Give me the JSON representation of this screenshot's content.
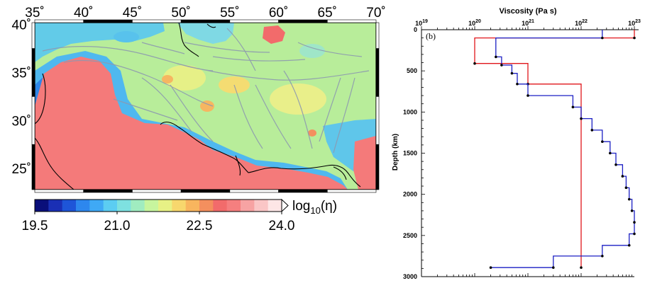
{
  "map": {
    "lon_ticks": [
      "35˚",
      "40˚",
      "45˚",
      "50˚",
      "55˚",
      "60˚",
      "65˚",
      "70˚"
    ],
    "lat_ticks": [
      "40˚",
      "35˚",
      "30˚",
      "25˚"
    ],
    "lon_range": [
      35,
      70
    ],
    "lat_range": [
      22.8,
      40.2
    ]
  },
  "colorbar": {
    "ticks": [
      "19.5",
      "21.0",
      "22.5",
      "24.0"
    ],
    "label_prefix": "log",
    "label_sub": "10",
    "label_suffix": "(η)",
    "colors": [
      "#0a0f7a",
      "#1a2fb5",
      "#1e55d8",
      "#2d87ee",
      "#3fa9f5",
      "#5ccdf2",
      "#7ee1e0",
      "#a0ecc0",
      "#c7f59e",
      "#e7f185",
      "#f7d76d",
      "#f8b55e",
      "#f48f5e",
      "#f26b6b",
      "#f57f7f",
      "#f7a3a3",
      "#fac6c6",
      "#fde6e6",
      "#ffffff"
    ]
  },
  "chart_data": {
    "type": "line",
    "title": "Viscosity (Pa s)",
    "xlabel": "Viscosity (Pa s)",
    "ylabel": "Depth (km)",
    "panel_label": "(b)",
    "x_scale": "log",
    "xlim": [
      1e+19,
      1e+23
    ],
    "ylim": [
      3000,
      0
    ],
    "x_tick_labels": [
      {
        "base": "10",
        "exp": "19"
      },
      {
        "base": "10",
        "exp": "20"
      },
      {
        "base": "10",
        "exp": "21"
      },
      {
        "base": "10",
        "exp": "22"
      },
      {
        "base": "10",
        "exp": "23"
      }
    ],
    "y_ticks": [
      0,
      500,
      1000,
      1500,
      2000,
      2500,
      3000
    ],
    "y_tick_labels": [
      "0",
      "500",
      "1000",
      "1500",
      "2000",
      "2500",
      "3000"
    ],
    "series": [
      {
        "color": "#e0161b",
        "layers": [
          {
            "top": 0,
            "bottom": 100,
            "viscosity": 1e+23
          },
          {
            "top": 100,
            "bottom": 410,
            "viscosity": 1e+20
          },
          {
            "top": 410,
            "bottom": 660,
            "viscosity": 1e+21
          },
          {
            "top": 660,
            "bottom": 2890,
            "viscosity": 1e+22
          }
        ]
      },
      {
        "color": "#1b1fc4",
        "layers": [
          {
            "top": 0,
            "bottom": 100,
            "viscosity": 2.5e+22
          },
          {
            "top": 100,
            "bottom": 330,
            "viscosity": 2.5e+20
          },
          {
            "top": 330,
            "bottom": 430,
            "viscosity": 3.2e+20
          },
          {
            "top": 430,
            "bottom": 530,
            "viscosity": 5e+20
          },
          {
            "top": 530,
            "bottom": 660,
            "viscosity": 6.3e+20
          },
          {
            "top": 660,
            "bottom": 800,
            "viscosity": 1e+21
          },
          {
            "top": 800,
            "bottom": 940,
            "viscosity": 7e+21
          },
          {
            "top": 940,
            "bottom": 1080,
            "viscosity": 1e+22
          },
          {
            "top": 1080,
            "bottom": 1220,
            "viscosity": 1.6e+22
          },
          {
            "top": 1220,
            "bottom": 1360,
            "viscosity": 2.5e+22
          },
          {
            "top": 1360,
            "bottom": 1500,
            "viscosity": 3.5e+22
          },
          {
            "top": 1500,
            "bottom": 1640,
            "viscosity": 4.5e+22
          },
          {
            "top": 1640,
            "bottom": 1780,
            "viscosity": 6e+22
          },
          {
            "top": 1780,
            "bottom": 1920,
            "viscosity": 7e+22
          },
          {
            "top": 1920,
            "bottom": 2060,
            "viscosity": 8e+22
          },
          {
            "top": 2060,
            "bottom": 2200,
            "viscosity": 9e+22
          },
          {
            "top": 2200,
            "bottom": 2340,
            "viscosity": 1e+23
          },
          {
            "top": 2340,
            "bottom": 2480,
            "viscosity": 1e+23
          },
          {
            "top": 2480,
            "bottom": 2620,
            "viscosity": 8e+22
          },
          {
            "top": 2620,
            "bottom": 2750,
            "viscosity": 2.5e+22
          },
          {
            "top": 2750,
            "bottom": 2890,
            "viscosity": 3e+21
          },
          {
            "top": 2890,
            "bottom": 2890,
            "viscosity": 2e+20
          }
        ]
      }
    ]
  }
}
